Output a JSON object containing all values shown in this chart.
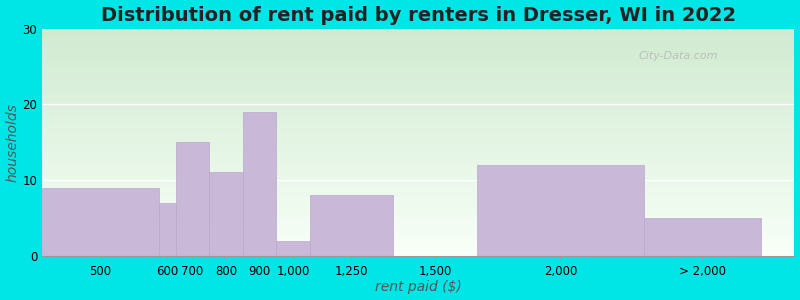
{
  "title": "Distribution of rent paid by renters in Dresser, WI in 2022",
  "xlabel": "rent paid ($)",
  "ylabel": "households",
  "bar_labels": [
    "500",
    "600",
    "700",
    "800",
    "900",
    "1,000",
    "1,250",
    "1,500",
    "2,000",
    "> 2,000"
  ],
  "bar_heights": [
    9,
    7,
    15,
    11,
    19,
    2,
    8,
    0,
    12,
    5
  ],
  "bar_color": "#c9b8d8",
  "bar_edgecolor": "#b8a8cc",
  "bin_edges": [
    200,
    550,
    600,
    700,
    800,
    900,
    1000,
    1250,
    1500,
    2000,
    2350
  ],
  "tick_positions": [
    375,
    575,
    650,
    750,
    850,
    950,
    1125,
    1375,
    1750,
    2175
  ],
  "xlim": [
    200,
    2450
  ],
  "ylim": [
    0,
    30
  ],
  "yticks": [
    0,
    10,
    20,
    30
  ],
  "background_color": "#00e5e5",
  "title_fontsize": 14,
  "axis_label_fontsize": 10,
  "tick_fontsize": 8.5,
  "watermark": "City-Data.com"
}
